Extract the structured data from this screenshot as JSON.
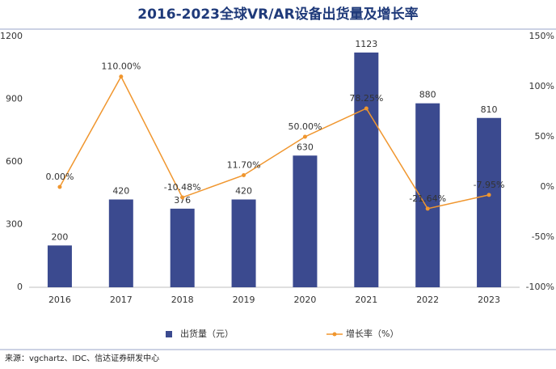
{
  "chart_data": {
    "type": "bar_line",
    "title": "2016-2023全球VR/AR设备出货量及增长率",
    "source": "来源：vgchartz、IDC、信达证券研发中心",
    "categories": [
      "2016",
      "2017",
      "2018",
      "2019",
      "2020",
      "2021",
      "2022",
      "2023"
    ],
    "series": [
      {
        "name": "出货量（元）",
        "type": "bar",
        "color": "#3b4a8f",
        "values": [
          200,
          420,
          376,
          420,
          630,
          1123,
          880,
          810
        ]
      },
      {
        "name": "增长率（%）",
        "type": "line",
        "axis": "y2",
        "color": "#f0962e",
        "values": [
          0,
          110,
          -10.48,
          11.7,
          50,
          78.25,
          -21.64,
          -7.95
        ],
        "value_labels": [
          "0.00%",
          "110.00%",
          "-10.48%",
          "11.70%",
          "50.00%",
          "78.25%",
          "-21.64%",
          "-7.95%"
        ]
      }
    ],
    "ylim": [
      0,
      1200
    ],
    "yticks": [
      0,
      300,
      600,
      900,
      1200
    ],
    "y2lim": [
      -100,
      150
    ],
    "y2ticks": [
      {
        "value": -100,
        "label": "-100%"
      },
      {
        "value": -50,
        "label": "-50%"
      },
      {
        "value": 0,
        "label": "0%"
      },
      {
        "value": 50,
        "label": "50%"
      },
      {
        "value": 100,
        "label": "100%"
      },
      {
        "value": 150,
        "label": "150%"
      }
    ],
    "legend": "bottom",
    "grid": false
  }
}
